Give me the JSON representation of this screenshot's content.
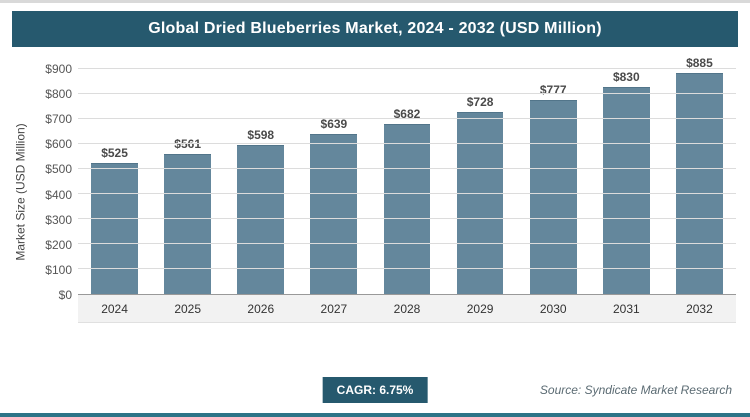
{
  "header": {
    "title": "Global Dried Blueberries Market, 2024 - 2032 (USD Million)"
  },
  "chart_data": {
    "type": "bar",
    "title": "Global Dried Blueberries Market, 2024 - 2032 (USD Million)",
    "categories": [
      "2024",
      "2025",
      "2026",
      "2027",
      "2028",
      "2029",
      "2030",
      "2031",
      "2032"
    ],
    "values": [
      525,
      561,
      598,
      639,
      682,
      728,
      777,
      830,
      885
    ],
    "value_labels": [
      "$525",
      "$561",
      "$598",
      "$639",
      "$682",
      "$728",
      "$777",
      "$830",
      "$885"
    ],
    "xlabel": "",
    "ylabel": "Market Size (USD Million)",
    "ylim": [
      0,
      900
    ],
    "ytick_step": 100,
    "ytick_labels": [
      "$0",
      "$100",
      "$200",
      "$300",
      "$400",
      "$500",
      "$600",
      "$700",
      "$800",
      "$900"
    ],
    "grid": true,
    "legend_position": "none",
    "bar_color": "#64879c"
  },
  "footer": {
    "cagr_label": "CAGR: 6.75%",
    "source": "Source: Syndicate Market Research"
  },
  "colors": {
    "header_bg": "#26596e",
    "bar": "#64879c",
    "accent_line": "#2d7487"
  }
}
